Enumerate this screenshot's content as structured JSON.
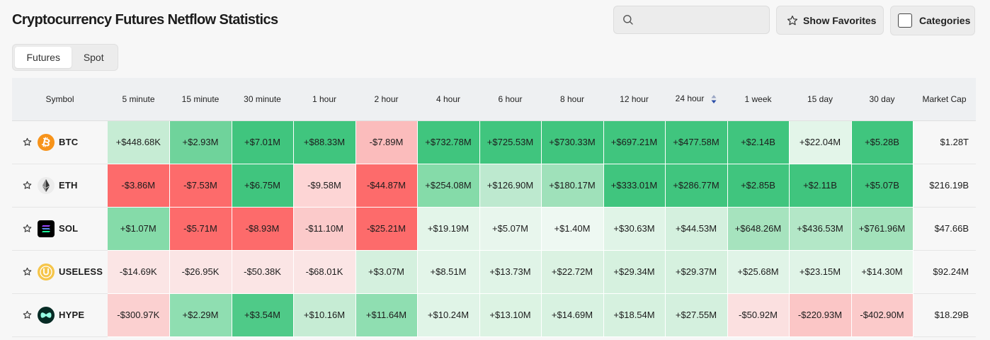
{
  "header": {
    "title": "Cryptocurrency Futures Netflow Statistics",
    "search_placeholder": "",
    "favorites_label": "Show Favorites",
    "categories_label": "Categories"
  },
  "tabs": [
    {
      "label": "Futures",
      "active": true
    },
    {
      "label": "Spot",
      "active": false
    }
  ],
  "table": {
    "columns": [
      "Symbol",
      "5 minute",
      "15 minute",
      "30 minute",
      "1 hour",
      "2 hour",
      "4 hour",
      "6 hour",
      "8 hour",
      "12 hour",
      "24 hour",
      "1 week",
      "15 day",
      "30 day",
      "Market Cap"
    ],
    "sorted_column": "24 hour",
    "rows": [
      {
        "symbol": "BTC",
        "logo": "bitcoin-logo",
        "values": [
          "+$448.68K",
          "+$2.93M",
          "+$7.01M",
          "+$88.33M",
          "-$7.89M",
          "+$732.78M",
          "+$725.53M",
          "+$730.33M",
          "+$697.21M",
          "+$477.58M",
          "+$2.14B",
          "+$22.04M",
          "+$5.28B"
        ],
        "market_cap": "$1.28T"
      },
      {
        "symbol": "ETH",
        "logo": "ethereum-logo",
        "values": [
          "-$3.86M",
          "-$7.53M",
          "+$6.75M",
          "-$9.58M",
          "-$44.87M",
          "+$254.08M",
          "+$126.90M",
          "+$180.17M",
          "+$333.01M",
          "+$286.77M",
          "+$2.85B",
          "+$2.11B",
          "+$5.07B"
        ],
        "market_cap": "$216.19B"
      },
      {
        "symbol": "SOL",
        "logo": "solana-logo",
        "values": [
          "+$1.07M",
          "-$5.71M",
          "-$8.93M",
          "-$11.10M",
          "-$25.21M",
          "+$19.19M",
          "+$5.07M",
          "+$1.40M",
          "+$30.63M",
          "+$44.53M",
          "+$648.26M",
          "+$436.53M",
          "+$761.96M"
        ],
        "market_cap": "$47.66B"
      },
      {
        "symbol": "USELESS",
        "logo": "useless-logo",
        "values": [
          "-$14.69K",
          "-$26.95K",
          "-$50.38K",
          "-$68.01K",
          "+$3.07M",
          "+$8.51M",
          "+$13.73M",
          "+$22.72M",
          "+$29.34M",
          "+$29.37M",
          "+$25.68M",
          "+$23.15M",
          "+$14.30M"
        ],
        "market_cap": "$92.24M"
      },
      {
        "symbol": "HYPE",
        "logo": "hyperliquid-logo",
        "values": [
          "-$300.97K",
          "+$2.29M",
          "+$3.54M",
          "+$10.16M",
          "+$11.64M",
          "+$10.24M",
          "+$13.10M",
          "+$14.69M",
          "+$18.54M",
          "+$27.55M",
          "-$50.92M",
          "-$220.93M",
          "-$402.90M"
        ],
        "market_cap": "$18.29B"
      }
    ],
    "cell_colors": [
      [
        "#c6ecd4",
        "#6fd39b",
        "#40c57e",
        "#40c57e",
        "#fbbcbc",
        "#40c57e",
        "#40c57e",
        "#40c57e",
        "#40c57e",
        "#40c57e",
        "#40c57e",
        "#e3f5e9",
        "#40c57e"
      ],
      [
        "#fd6b6b",
        "#fd6b6b",
        "#40c57e",
        "#fdd5d5",
        "#fd6b6b",
        "#85dba9",
        "#bde9cf",
        "#9fe1ba",
        "#40c57e",
        "#40c57e",
        "#40c57e",
        "#40c57e",
        "#40c57e"
      ],
      [
        "#85dba9",
        "#fd6b6b",
        "#fd6b6b",
        "#fbcaca",
        "#fd6b6b",
        "#e3f5e9",
        "#e8f6ed",
        "#eef8f2",
        "#e0f4e7",
        "#d4f0de",
        "#a6e3be",
        "#b3e7c7",
        "#a2e2bb"
      ],
      [
        "#fbe5e5",
        "#fbe5e5",
        "#fbe5e5",
        "#fbe5e5",
        "#d4f0de",
        "#e3f5e9",
        "#e0f4e7",
        "#dbf2e2",
        "#d6f1df",
        "#d6f1df",
        "#e0f4e7",
        "#e0f4e7",
        "#e6f6eb"
      ],
      [
        "#fbd0d0",
        "#8fdeb1",
        "#4fca88",
        "#c6ecd4",
        "#8fdeb1",
        "#e0f4e7",
        "#dcf3e3",
        "#d8f2e1",
        "#d6f1df",
        "#d4f0de",
        "#fbe0e0",
        "#fbc6c6",
        "#fbcaca"
      ]
    ]
  }
}
